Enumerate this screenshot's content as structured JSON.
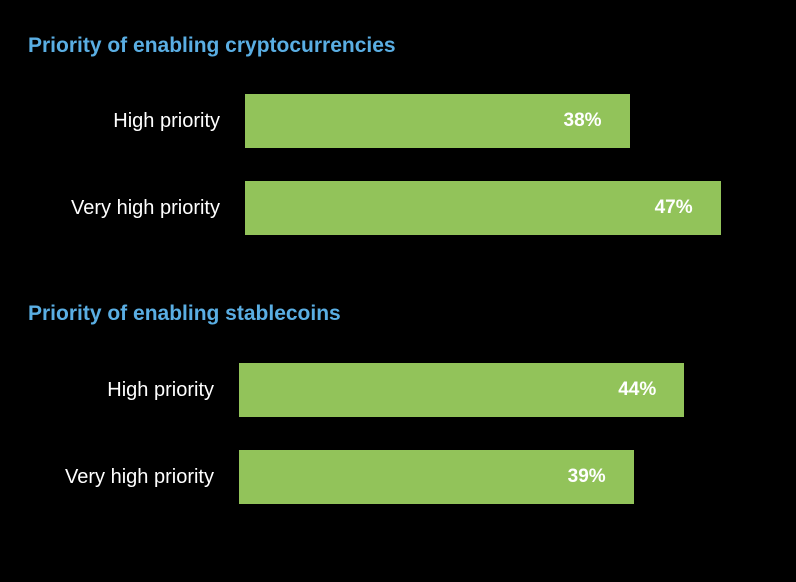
{
  "colors": {
    "background": "#000000",
    "title": "#5aaee3",
    "bar": "#92c35a",
    "text": "#ffffff"
  },
  "chart_data": [
    {
      "type": "bar",
      "orientation": "horizontal",
      "title": "Priority of enabling cryptocurrencies",
      "categories": [
        "High priority",
        "Very high priority"
      ],
      "values": [
        38,
        47
      ],
      "value_labels": [
        "38%",
        "47%"
      ],
      "unit": "%"
    },
    {
      "type": "bar",
      "orientation": "horizontal",
      "title": "Priority of enabling stablecoins",
      "categories": [
        "High priority",
        "Very high priority"
      ],
      "values": [
        44,
        39
      ],
      "value_labels": [
        "44%",
        "39%"
      ],
      "unit": "%"
    }
  ]
}
